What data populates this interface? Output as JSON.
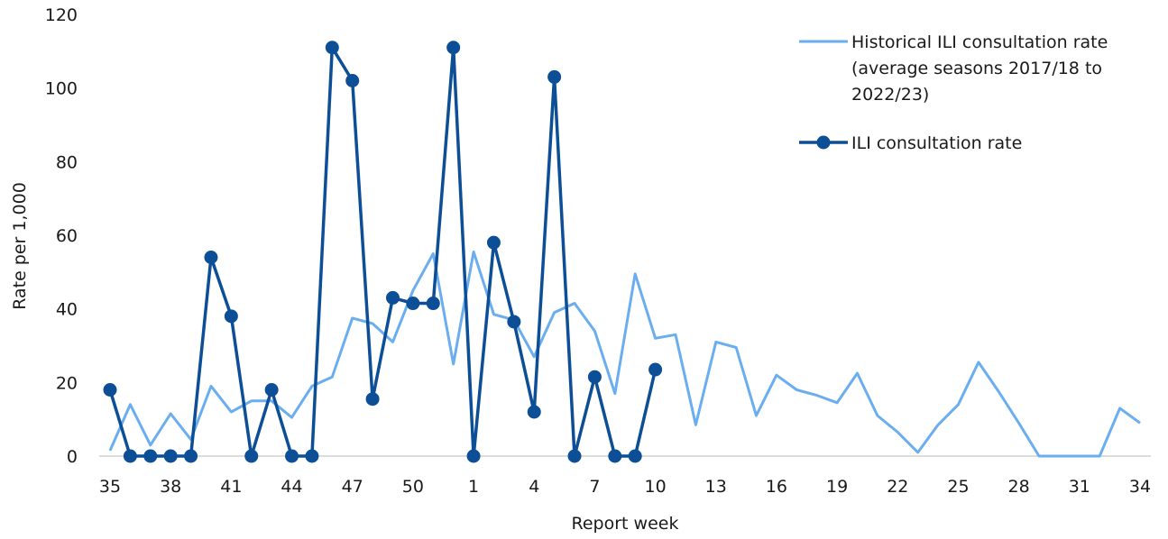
{
  "chart_data": {
    "type": "line",
    "xlabel": "Report week",
    "ylabel": "Rate per 1,000",
    "ylim": [
      0,
      120
    ],
    "yticks": [
      0,
      20,
      40,
      60,
      80,
      100,
      120
    ],
    "grid": false,
    "legend_position": "top-right",
    "weeks": [
      "35",
      "36",
      "37",
      "38",
      "39",
      "40",
      "41",
      "42",
      "43",
      "44",
      "45",
      "46",
      "47",
      "48",
      "49",
      "50",
      "51",
      "52",
      "1",
      "2",
      "3",
      "4",
      "5",
      "6",
      "7",
      "8",
      "9",
      "10",
      "11",
      "12",
      "13",
      "14",
      "15",
      "16",
      "17",
      "18",
      "19",
      "20",
      "21",
      "22",
      "23",
      "24",
      "25",
      "26",
      "27",
      "28",
      "29",
      "30",
      "31",
      "32",
      "33",
      "34"
    ],
    "x_tick_labels": [
      "35",
      "38",
      "41",
      "44",
      "47",
      "50",
      "1",
      "4",
      "7",
      "10",
      "13",
      "16",
      "19",
      "22",
      "25",
      "28",
      "31",
      "34"
    ],
    "series": [
      {
        "name": "Historical ILI consultation rate (average seasons 2017/18 to 2022/23)",
        "legend_lines": [
          "Historical ILI consultation rate",
          "(average seasons 2017/18 to",
          "2022/23)"
        ],
        "color": "#6aaef0",
        "markers": false,
        "values": [
          1.5,
          14,
          3,
          11.5,
          4.5,
          19,
          12,
          15,
          15,
          10.5,
          19,
          21.5,
          37.5,
          36,
          31,
          45,
          55,
          25,
          55.5,
          38.5,
          37,
          27,
          39,
          41.5,
          34,
          17,
          49.5,
          32,
          33,
          8.5,
          31,
          29.5,
          11,
          22,
          18,
          16.5,
          14.5,
          22.5,
          11,
          6.5,
          1,
          8.5,
          14,
          25.5,
          17.5,
          9,
          0,
          0,
          0,
          0,
          13,
          9
        ]
      },
      {
        "name": "ILI consultation rate",
        "legend_lines": [
          "ILI consultation rate"
        ],
        "color": "#0d4f96",
        "markers": true,
        "values": [
          18,
          0,
          0,
          0,
          0,
          54,
          38,
          0,
          18,
          0,
          0,
          111,
          102,
          15.5,
          43,
          41.5,
          41.5,
          111,
          0,
          58,
          36.5,
          12,
          103,
          0,
          21.5,
          0,
          0,
          23.5
        ]
      }
    ]
  }
}
